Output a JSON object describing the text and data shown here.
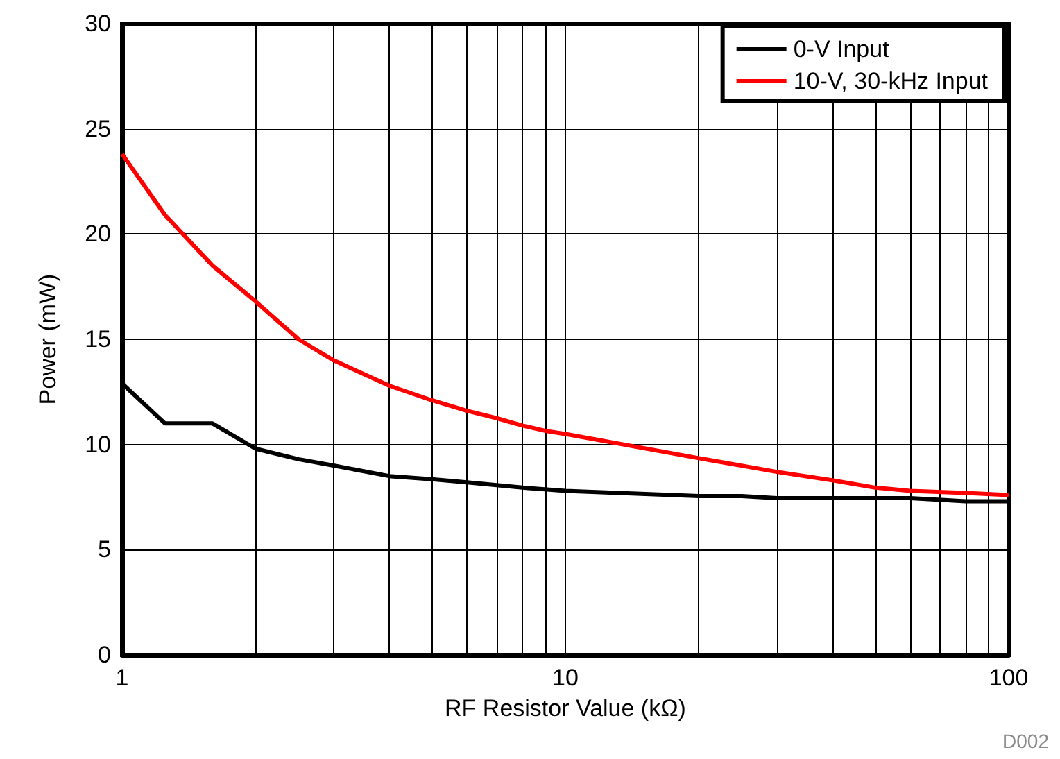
{
  "chart_data": {
    "type": "line",
    "xlabel": "RF Resistor Value (kΩ)",
    "ylabel": "Power (mW)",
    "log": "x",
    "grid": true,
    "legend": "top right",
    "marker": "none",
    "line_style": "solid",
    "xlim": [
      1,
      100
    ],
    "xticks": [
      1,
      {
        "value": 2,
        "label": null
      },
      {
        "value": 3,
        "label": null
      },
      {
        "value": 4,
        "label": null
      },
      {
        "value": 5,
        "label": null
      },
      {
        "value": 6,
        "label": null
      },
      {
        "value": 7,
        "label": null
      },
      {
        "value": 8,
        "label": null
      },
      {
        "value": 9,
        "label": null
      },
      10,
      {
        "value": 20,
        "label": null
      },
      {
        "value": 30,
        "label": null
      },
      {
        "value": 40,
        "label": null
      },
      {
        "value": 50,
        "label": null
      },
      {
        "value": 60,
        "label": null
      },
      {
        "value": 70,
        "label": null
      },
      {
        "value": 80,
        "label": null
      },
      {
        "value": 90,
        "label": null
      },
      100
    ],
    "ylim": [
      0,
      30
    ],
    "yticks": [
      0,
      5,
      10,
      15,
      20,
      25,
      30
    ],
    "annotations": [
      "D002"
    ],
    "series": [
      {
        "name": "0-V Input",
        "color": "#000000",
        "x": [
          1,
          1.25,
          1.6,
          2,
          2.5,
          3,
          4,
          5,
          6,
          8,
          10,
          20,
          25,
          30,
          50,
          60,
          80,
          100
        ],
        "values": [
          12.9,
          11.0,
          11.0,
          9.8,
          9.3,
          9.0,
          8.5,
          8.35,
          8.2,
          7.95,
          7.8,
          7.55,
          7.55,
          7.45,
          7.45,
          7.45,
          7.3,
          7.3
        ]
      },
      {
        "name": "10-V, 30-kHz Input",
        "color": "#ff0000",
        "x": [
          1,
          1.25,
          1.6,
          2,
          2.5,
          3,
          4,
          5,
          6,
          7,
          8,
          9,
          10,
          20,
          30,
          40,
          50,
          60,
          80,
          100
        ],
        "values": [
          23.8,
          20.9,
          18.5,
          16.8,
          15.0,
          14.0,
          12.8,
          12.1,
          11.6,
          11.25,
          10.9,
          10.65,
          10.5,
          9.35,
          8.7,
          8.3,
          7.95,
          7.8,
          7.7,
          7.6
        ]
      }
    ]
  }
}
